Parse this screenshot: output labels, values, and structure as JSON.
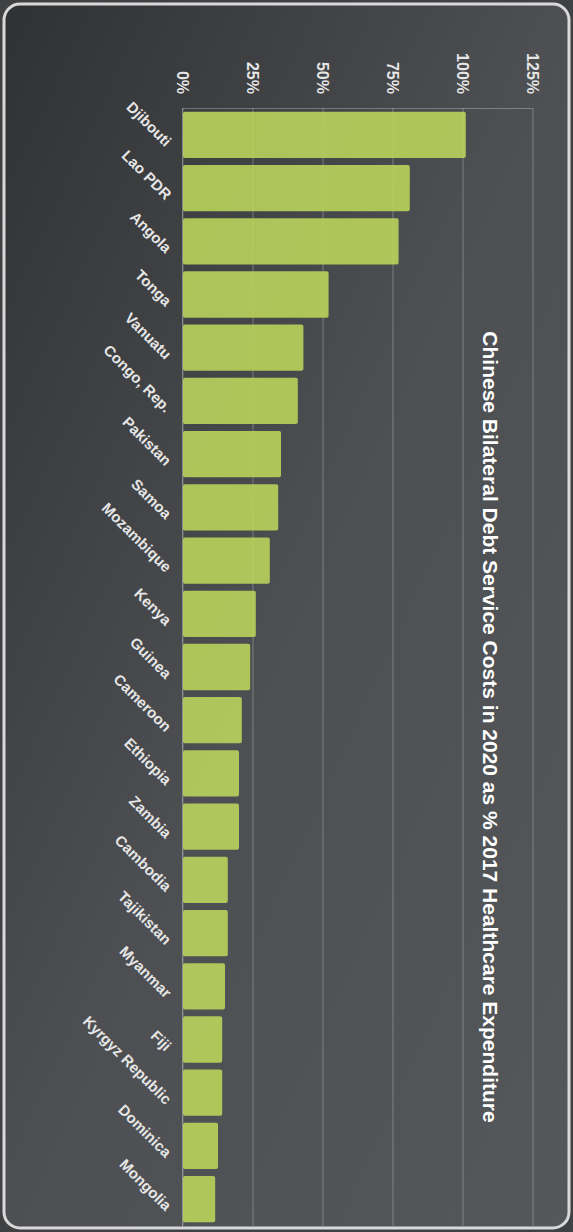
{
  "chart_data": {
    "type": "bar",
    "title": "Chinese Bilateral Debt Service Costs in 2020 as % 2017 Healthcare Expenditure",
    "categories": [
      "Djibouti",
      "Lao PDR",
      "Angola",
      "Tonga",
      "Vanuatu",
      "Congo, Rep.",
      "Pakistan",
      "Samoa",
      "Mozambique",
      "Kenya",
      "Guinea",
      "Cameroon",
      "Ethiopia",
      "Zambia",
      "Cambodia",
      "Tajikistan",
      "Myanmar",
      "Fiji",
      "Kyrgyz Republic",
      "Dominica",
      "Mongolia"
    ],
    "values": [
      101,
      81,
      77,
      52,
      43,
      41,
      35,
      34,
      31,
      26,
      24,
      21,
      20,
      20,
      16,
      16,
      15,
      14,
      14,
      12.5,
      11.5
    ],
    "color": "#b9d35c",
    "ylim": [
      0,
      125
    ],
    "yticks": [
      {
        "value": 0,
        "label": "0%"
      },
      {
        "value": 25,
        "label": "25%"
      },
      {
        "value": 50,
        "label": "50%"
      },
      {
        "value": 75,
        "label": "75%"
      },
      {
        "value": 100,
        "label": "100%"
      },
      {
        "value": 125,
        "label": "125%"
      }
    ],
    "grid": true
  }
}
